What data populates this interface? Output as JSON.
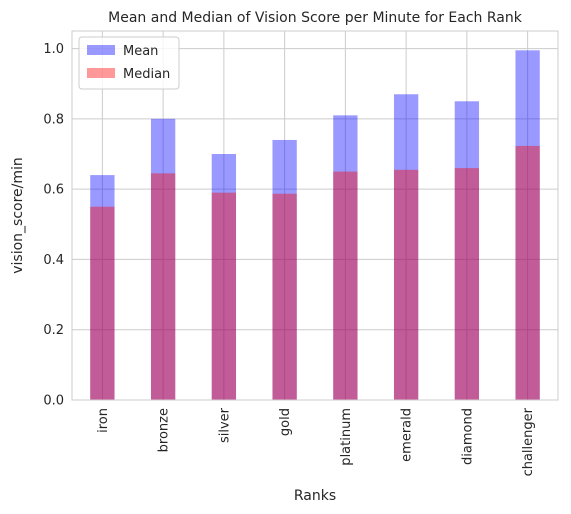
{
  "chart_data": {
    "type": "bar",
    "title": "Mean and Median of Vision Score per Minute for Each Rank",
    "xlabel": "Ranks",
    "ylabel": "vision_score/min",
    "categories": [
      "iron",
      "bronze",
      "silver",
      "gold",
      "platinum",
      "emerald",
      "diamond",
      "challenger"
    ],
    "series": [
      {
        "name": "Mean",
        "color": "#9999ff",
        "values": [
          0.64,
          0.8,
          0.7,
          0.74,
          0.81,
          0.87,
          0.85,
          0.995
        ]
      },
      {
        "name": "Median",
        "color": "#c05a95",
        "values": [
          0.55,
          0.645,
          0.59,
          0.587,
          0.65,
          0.655,
          0.66,
          0.723
        ]
      }
    ],
    "ylim": [
      0,
      1.05
    ],
    "yticks": [
      "0.0",
      "0.2",
      "0.4",
      "0.6",
      "0.8",
      "1.0"
    ],
    "grid": true,
    "legend": "top-left",
    "overlay": true,
    "xtick_rotation": 90
  }
}
